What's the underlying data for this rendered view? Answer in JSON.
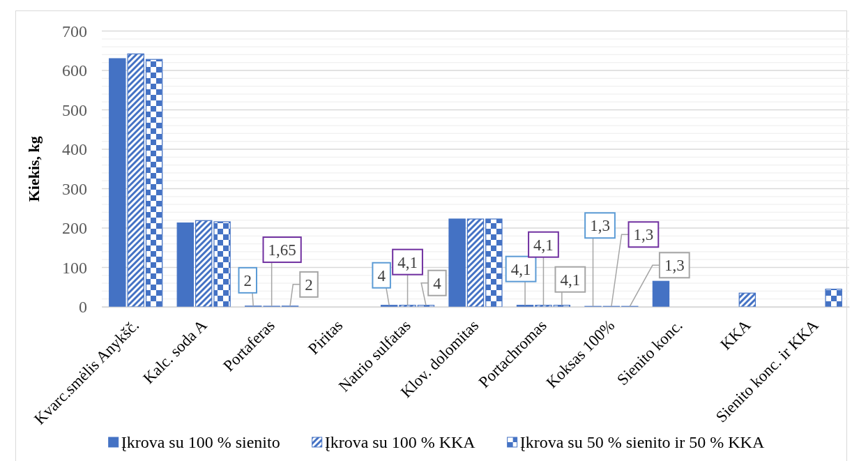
{
  "chart_data": {
    "type": "bar",
    "ylabel": "Kiekis, kg",
    "categories": [
      "Kvarc.smėlis Anykšč.",
      "Kalc. soda A",
      "Portaferas",
      "Piritas",
      "Natrio sulfatas",
      "Klov. dolomitas",
      "Portachromas",
      "Koksas 100%",
      "Sienito konc.",
      "KKA",
      "Sienito konc. ir KKA"
    ],
    "series": [
      {
        "name": "Įkrova su 100 % sienito",
        "color": "#4472c4",
        "values": [
          630,
          213,
          2,
          null,
          4,
          223,
          4.1,
          1.3,
          65,
          null,
          null
        ],
        "value_labels": [
          null,
          null,
          "2",
          null,
          "4",
          null,
          "4,1",
          "1,3",
          null,
          null,
          null
        ]
      },
      {
        "name": "Įkrova su 100 % KKA",
        "color": "#4472c4",
        "values": [
          642,
          219,
          1.65,
          null,
          4.1,
          223,
          4.1,
          1.3,
          null,
          35,
          null
        ],
        "value_labels": [
          null,
          null,
          "1,65",
          null,
          "4,1",
          null,
          "4,1",
          "1,3",
          null,
          null,
          null
        ]
      },
      {
        "name": "Įkrova su 50 % sienito ir 50 % KKA",
        "color": "#4472c4",
        "values": [
          628,
          216,
          2,
          null,
          4,
          223,
          4.1,
          1.3,
          null,
          null,
          45
        ],
        "value_labels": [
          null,
          null,
          "2",
          null,
          "4",
          null,
          "4,1",
          "1,3",
          null,
          null,
          null
        ]
      }
    ],
    "ylim": [
      0,
      700
    ],
    "yticks": [
      0,
      {
        "value": 20,
        "label": null
      },
      {
        "value": 40,
        "label": null
      },
      {
        "value": 60,
        "label": null
      },
      {
        "value": 80,
        "label": null
      },
      100,
      {
        "value": 120,
        "label": null
      },
      {
        "value": 140,
        "label": null
      },
      {
        "value": 160,
        "label": null
      },
      {
        "value": 180,
        "label": null
      },
      200,
      {
        "value": 220,
        "label": null
      },
      {
        "value": 240,
        "label": null
      },
      {
        "value": 260,
        "label": null
      },
      {
        "value": 280,
        "label": null
      },
      300,
      {
        "value": 320,
        "label": null
      },
      {
        "value": 340,
        "label": null
      },
      {
        "value": 360,
        "label": null
      },
      {
        "value": 380,
        "label": null
      },
      400,
      {
        "value": 420,
        "label": null
      },
      {
        "value": 440,
        "label": null
      },
      {
        "value": 460,
        "label": null
      },
      {
        "value": 480,
        "label": null
      },
      500,
      {
        "value": 520,
        "label": null
      },
      {
        "value": 540,
        "label": null
      },
      {
        "value": 560,
        "label": null
      },
      {
        "value": 580,
        "label": null
      },
      600,
      {
        "value": 620,
        "label": null
      },
      {
        "value": 640,
        "label": null
      },
      {
        "value": 660,
        "label": null
      },
      {
        "value": 680,
        "label": null
      },
      700
    ],
    "grid": "y",
    "legend": "bottom"
  }
}
